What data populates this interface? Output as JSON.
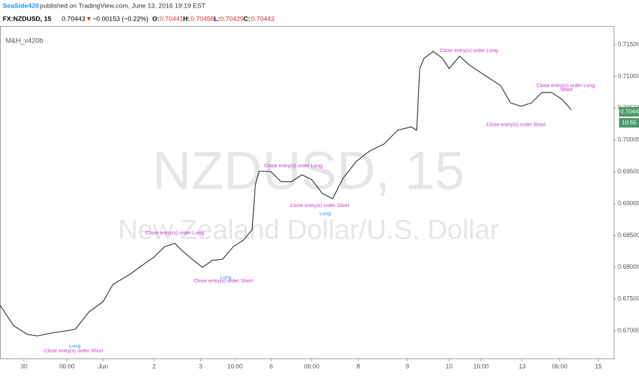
{
  "header": {
    "author": "SeaSide420",
    "published": "published on TradingView.com, June 13, 2016 19:19 EST",
    "symbol": "FX:NZDUSD, 15",
    "last": "0.70443",
    "arrow": "▼",
    "change": "−0.00153 (−0.22%)",
    "o_label": "O:",
    "o": "0.70441",
    "h_label": "H:",
    "h": "0.70456",
    "l_label": "L:",
    "l": "0.70425",
    "c_label": "C:",
    "c": "0.70443"
  },
  "chart_data": {
    "type": "line",
    "indicator": "M&H_v420b",
    "watermark": "NZDUSD, 15",
    "watermark_sub": "New Zealand Dollar/U.S. Dollar",
    "x": [
      0,
      1.1,
      2.2,
      4.5,
      6.1,
      8.9,
      11.2,
      12.3,
      14.5,
      16.8,
      18.4,
      21.2,
      23.5,
      25.1,
      26.8,
      28.5,
      29.6,
      31.3,
      33,
      34.6,
      36.3,
      38,
      39.7,
      41.1,
      41.6,
      42.2,
      44.1,
      45.8,
      47.5,
      49.2,
      50.8,
      52.5,
      54.2,
      55.9,
      58.1,
      60.3,
      62.6,
      64.8,
      67,
      67.9,
      68.4,
      69.1,
      70.6,
      72.1,
      73.2,
      74.9,
      76.5,
      78.2,
      79.9,
      81.6,
      83.2,
      84.9,
      86.6,
      88.3,
      89.9,
      91.6,
      93.1
    ],
    "series": [
      {
        "name": "NZDUSD",
        "color": "#333333",
        "values": [
          0.67405,
          0.67243,
          0.67082,
          0.66942,
          0.6692,
          0.66974,
          0.67006,
          0.67028,
          0.67297,
          0.67459,
          0.67728,
          0.6789,
          0.68052,
          0.68159,
          0.68321,
          0.68375,
          0.68267,
          0.68127,
          0.67998,
          0.68106,
          0.68127,
          0.68321,
          0.68429,
          0.6859,
          0.69291,
          0.69506,
          0.69506,
          0.69345,
          0.69345,
          0.69453,
          0.69377,
          0.69162,
          0.69075,
          0.69399,
          0.69668,
          0.6983,
          0.69937,
          0.70153,
          0.70207,
          0.70153,
          0.71123,
          0.71284,
          0.71392,
          0.71284,
          0.71123,
          0.71317,
          0.71177,
          0.71069,
          0.70961,
          0.70853,
          0.70584,
          0.7053,
          0.70584,
          0.70746,
          0.70746,
          0.70638,
          0.70476
        ]
      }
    ],
    "xlim": [
      0,
      100
    ],
    "ylim": [
      0.66565,
      0.71791
    ],
    "xticks": [
      {
        "value": 3.9,
        "label": "30"
      },
      {
        "value": 10.9,
        "label": "06:00"
      },
      {
        "value": 16.8,
        "label": "Jun"
      },
      {
        "value": 25.1,
        "label": "2"
      },
      {
        "value": 32.7,
        "label": "3"
      },
      {
        "value": 38.3,
        "label": "16:00"
      },
      {
        "value": 44.2,
        "label": "6"
      },
      {
        "value": 50.8,
        "label": "06:00"
      },
      {
        "value": 58.4,
        "label": "8"
      },
      {
        "value": 66.4,
        "label": "9"
      },
      {
        "value": 73.2,
        "label": "10"
      },
      {
        "value": 78.4,
        "label": "16:00"
      },
      {
        "value": 85.1,
        "label": "13"
      },
      {
        "value": 91.2,
        "label": "06:00"
      },
      {
        "value": 97.5,
        "label": "15"
      }
    ],
    "yticks": [
      {
        "value": 0.67,
        "label": "0.67000"
      },
      {
        "value": 0.675,
        "label": "0.67500"
      },
      {
        "value": 0.68,
        "label": "0.68000"
      },
      {
        "value": 0.685,
        "label": "0.68500"
      },
      {
        "value": 0.69,
        "label": "0.69000"
      },
      {
        "value": 0.695,
        "label": "0.69500"
      },
      {
        "value": 0.7,
        "label": "0.70000"
      },
      {
        "value": 0.705,
        "label": "0.70500"
      },
      {
        "value": 0.71,
        "label": "0.71000"
      },
      {
        "value": 0.715,
        "label": "0.71500"
      }
    ],
    "last_price": 0.70443,
    "countdown": "10:55",
    "annotations": [
      {
        "text": "Close entry(s) order Long",
        "x": 28.5,
        "y": 0.68537,
        "color": "#cc33cc"
      },
      {
        "text": "Close entry(s) order Short",
        "x": 36.4,
        "y": 0.67782,
        "color": "#cc33cc"
      },
      {
        "text": "Long",
        "x": 36.8,
        "y": 0.67836,
        "color": "#2196f3"
      },
      {
        "text": "Close entry(s) order Long",
        "x": 47.8,
        "y": 0.69593,
        "color": "#cc33cc"
      },
      {
        "text": "Close entry(s) order Short",
        "x": 52.1,
        "y": 0.68968,
        "color": "#cc33cc"
      },
      {
        "text": "Long",
        "x": 53,
        "y": 0.68838,
        "color": "#2196f3"
      },
      {
        "text": "Close entry(s) order Long",
        "x": 76.4,
        "y": 0.71403,
        "color": "#cc33cc"
      },
      {
        "text": "Close entry(s) order Short",
        "x": 84.1,
        "y": 0.70239,
        "color": "#cc33cc"
      },
      {
        "text": "Close entry(s) order Long",
        "x": 92.2,
        "y": 0.70853,
        "color": "#cc33cc"
      },
      {
        "text": "Short",
        "x": 92.3,
        "y": 0.70789,
        "color": "#cc33cc"
      },
      {
        "text": "Long",
        "x": 12.2,
        "y": 0.66759,
        "color": "#2196f3"
      },
      {
        "text": "Close entry(s) order Short",
        "x": 12,
        "y": 0.66683,
        "color": "#cc33cc"
      }
    ]
  }
}
